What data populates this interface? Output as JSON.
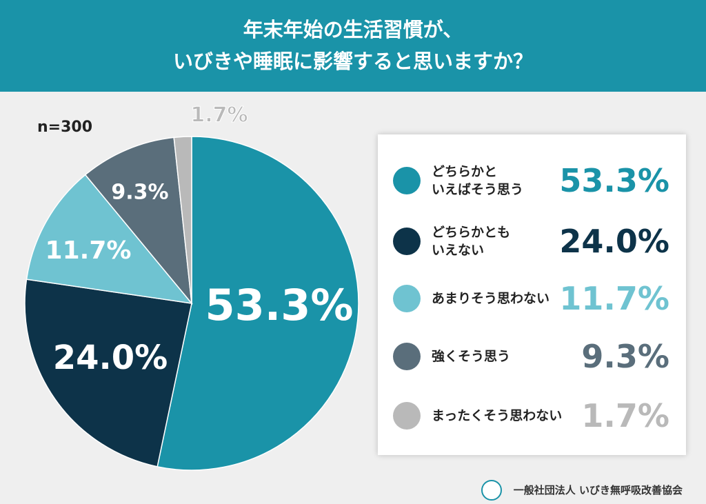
{
  "chart_data": {
    "type": "pie",
    "title": "年末年始の生活習慣が、\nいびきや睡眠に影響すると思いますか？",
    "note": "n=300",
    "categories": [
      "どちらかと\nいえばそう思う",
      "どちらかとも\nいえない",
      "あまりそう思わない",
      "強くそう思う",
      "まったくそう思わない"
    ],
    "values": [
      53.3,
      24.0,
      11.7,
      9.3,
      1.7
    ],
    "value_labels": [
      "53.3%",
      "24.0%",
      "11.7%",
      "9.3%",
      "1.7%"
    ],
    "colors": [
      "#1a93a8",
      "#0d3349",
      "#6fc3d1",
      "#5a6e7b",
      "#b9b9b9"
    ]
  },
  "footer": {
    "org": "一般社団法人 いびき無呼吸改善協会"
  }
}
